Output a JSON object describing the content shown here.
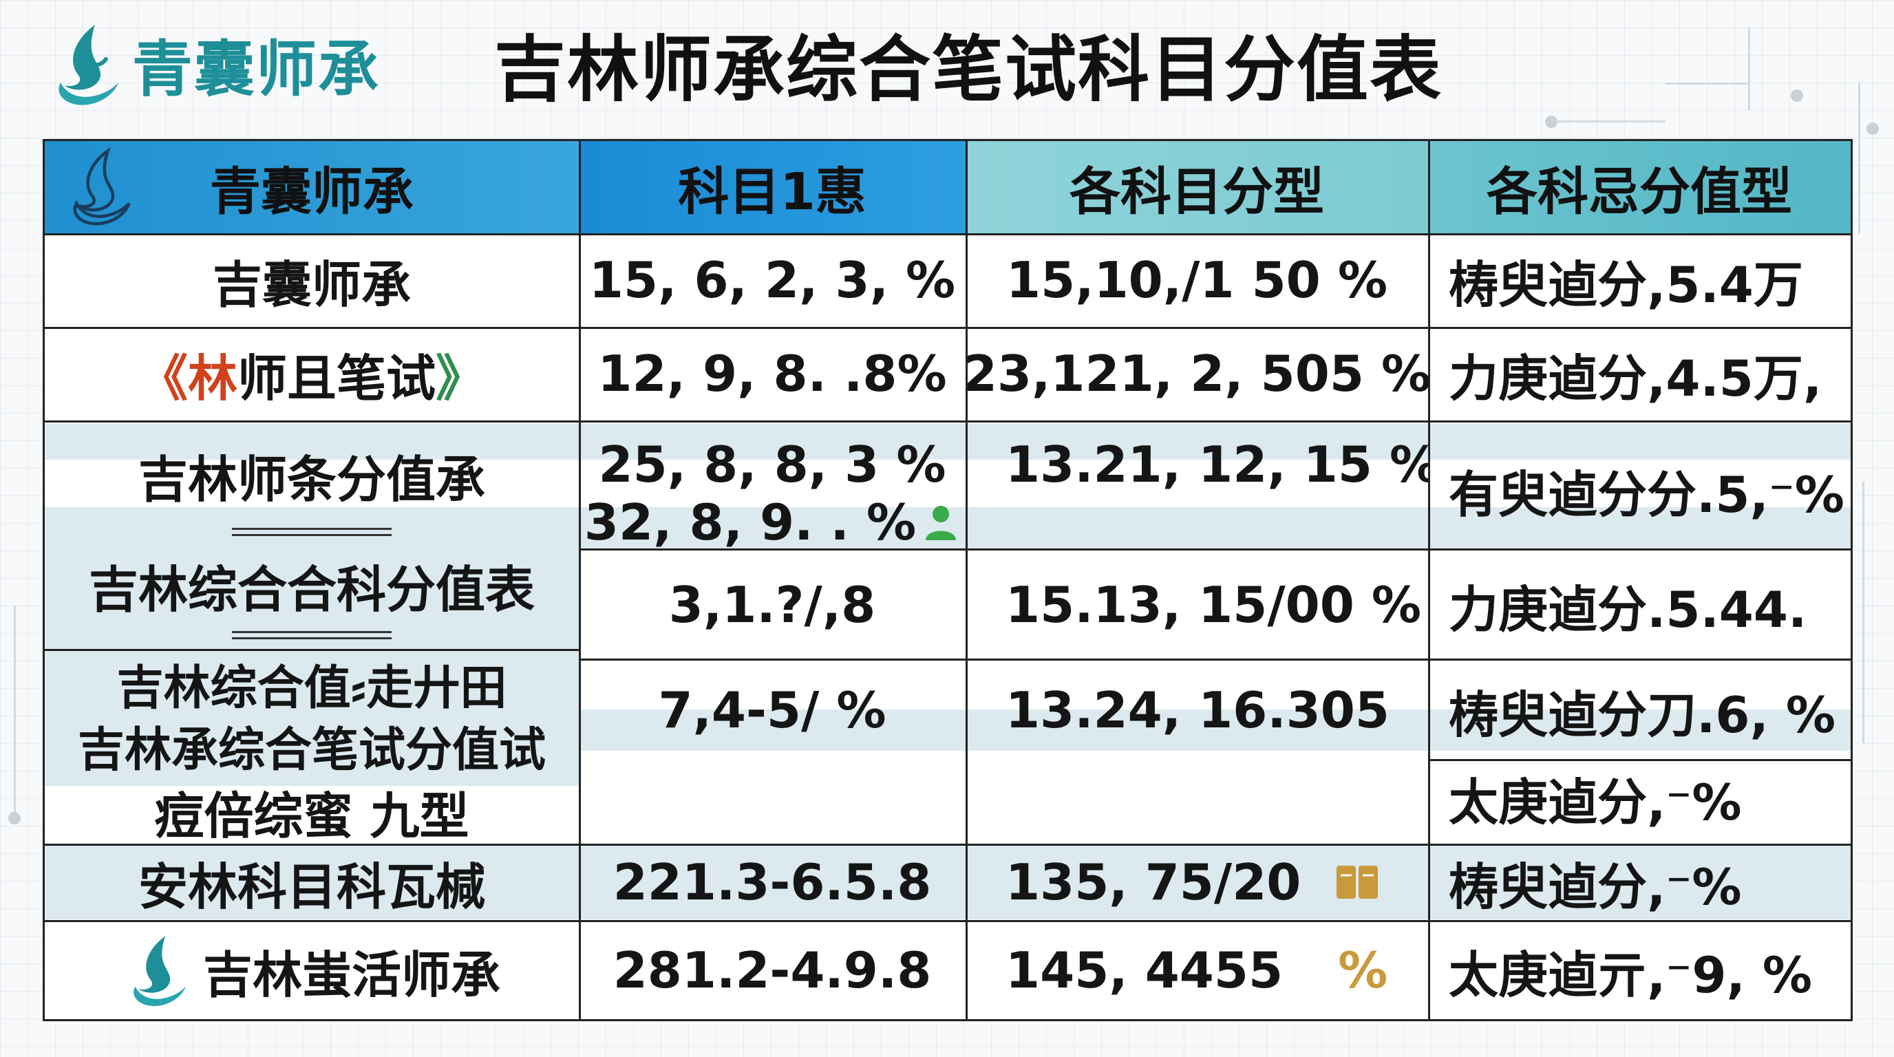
{
  "brand": {
    "name": "青囊师承"
  },
  "title": "吉林师承综合笔试科目分值表",
  "table": {
    "headers": [
      "青囊师承",
      "科目1惠",
      "各科目分型",
      "各科忌分值型"
    ],
    "rows": [
      {
        "c1": "吉囊师承",
        "c2": "15, 6, 2, 3, %",
        "c3": "15,10,/1 50  %",
        "c4": "梼臾逌分,5.4万"
      },
      {
        "c1_open": "《",
        "c1_red": "林",
        "c1_rest": "师且笔试",
        "c1_close": "》",
        "c2": "12, 9, 8. .8%",
        "c3": "23,121, 2, 505  %",
        "c4": "力庚逌分,4.5万,"
      },
      {
        "c1": "吉林师条分值承",
        "c2": "25, 8, 8, 3 %",
        "c3": "13.21, 12, 15  %",
        "c4": ""
      },
      {
        "c1": "",
        "c2": "32, 8, 9. . %",
        "c3": "",
        "c4": "有臾逌分分.5,⁻%"
      },
      {
        "c1": "吉林综合合科分值表",
        "c2": "3,1.?/,8",
        "c3": "15.13, 15/00  %",
        "c4": "力庚逌分.5.44."
      },
      {
        "c1a": "吉林综合值⸗走廾田",
        "c1b": "吉林承综合笔试分值试",
        "c2": "7,4-5/ %",
        "c3": "13.24, 16.305",
        "c4": "梼臾逌分刀.6,  %"
      },
      {
        "c1": "痘倍综蜜  九型",
        "c2": "",
        "c3": "",
        "c4": "太庚逌分,⁻%"
      },
      {
        "c1": "安林科目科瓦椷",
        "c2": "221.3-6.5.8",
        "c3": "135, 75/20",
        "c4": "梼臾逌分,⁻%"
      },
      {
        "c1": "吉林蚩活师承",
        "c2": "281.2-4.9.8",
        "c3": "145, 4455",
        "c3_mark": "%",
        "c4": "太庚逌亓,⁻9,  %"
      }
    ]
  },
  "colors": {
    "brand_teal": "#1e8f99",
    "header_blue": "#1f8fd0",
    "header_teal": "#6cc4cf",
    "band": "#dce9ee",
    "red_accent": "#d1421c"
  },
  "icons": [
    "brand-logo-icon",
    "person-icon",
    "pen-icon",
    "book-icon"
  ]
}
